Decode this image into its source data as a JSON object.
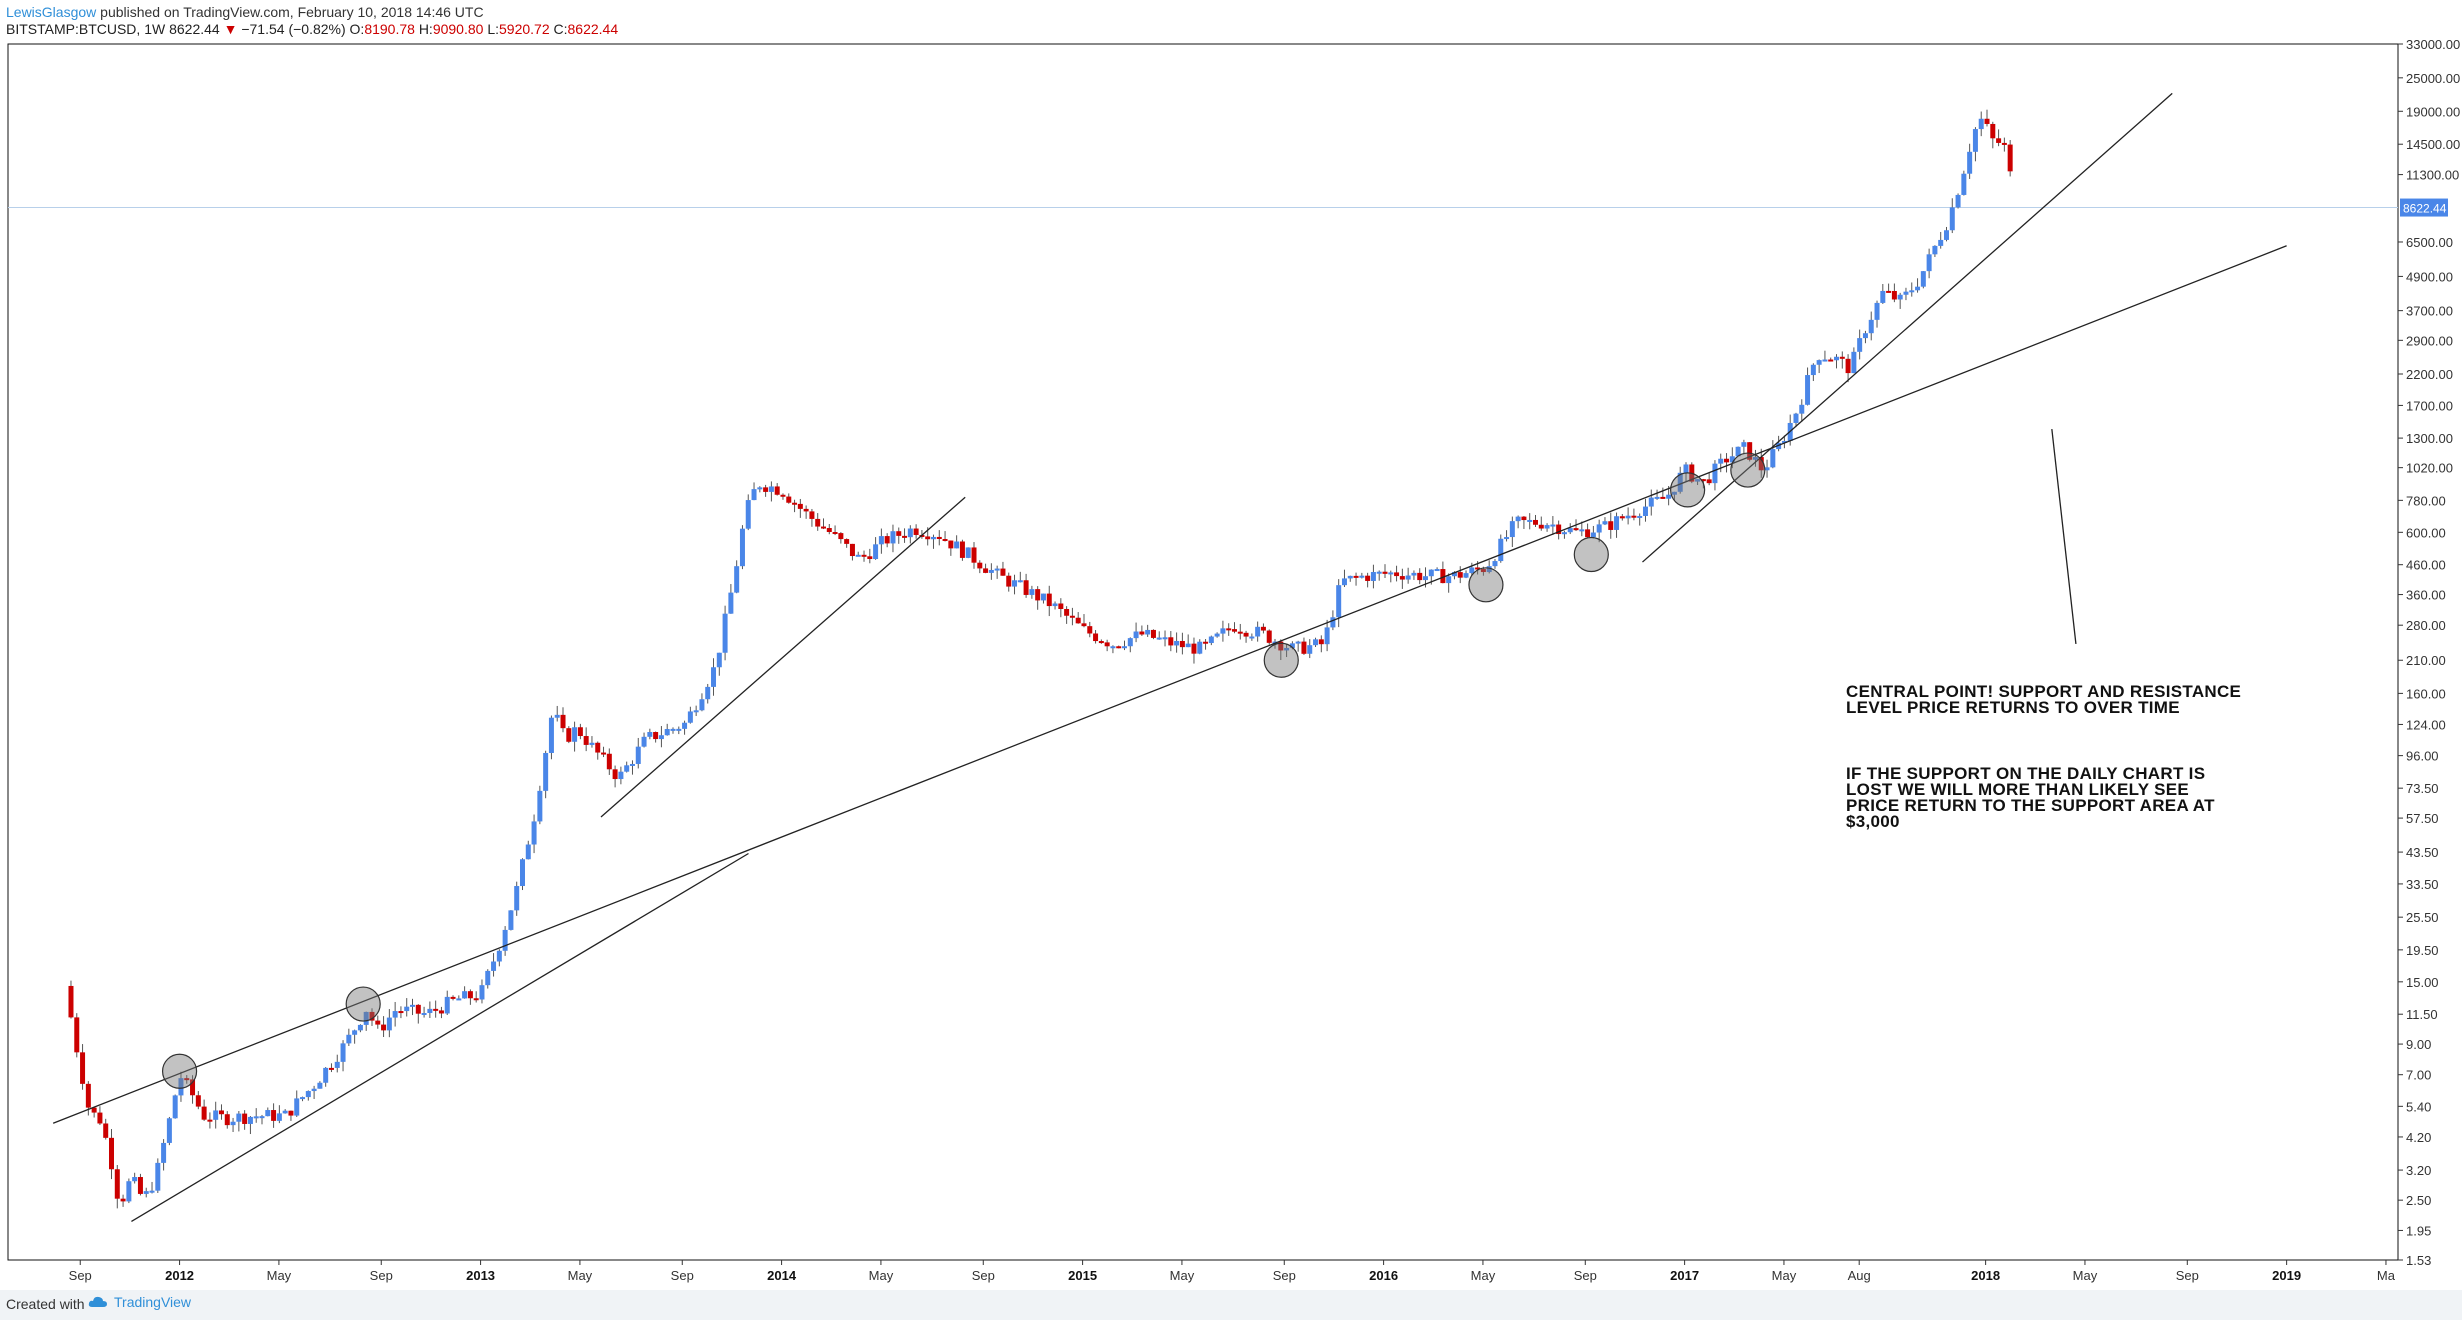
{
  "header": {
    "author": "LewisGlasgow",
    "published_text": "published on TradingView.com, February 10, 2018 14:46 UTC",
    "symbol": "BITSTAMP:BTCUSD, 1W",
    "last": "8622.44",
    "change_arrow": "▼",
    "change": "−71.54 (−0.82%)",
    "o_label": "O:",
    "o_val": "8190.78",
    "h_label": "H:",
    "h_val": "9090.80",
    "l_label": "L:",
    "l_val": "5920.72",
    "c_label": "C:",
    "c_val": "8622.44"
  },
  "footer": {
    "created_with": "Created with",
    "brand": "TradingView"
  },
  "annotations": {
    "central_point": "CENTRAL POINT! SUPPORT AND RESISTANCE LEVEL PRICE RETURNS TO OVER TIME",
    "support_note": "IF THE SUPPORT ON THE DAILY CHART IS LOST WE WILL MORE THAN LIKELY SEE PRICE RETURN TO THE SUPPORT AREA AT $3,000"
  },
  "colors": {
    "up": "#4a86e8",
    "down": "#cc0000",
    "price_tag": "#4a86e8",
    "trendline": "#222222"
  },
  "chart_data": {
    "type": "candlestick",
    "scale": "log",
    "ylim": [
      1.53,
      33000
    ],
    "y_ticks": [
      "1.53",
      "1.95",
      "2.50",
      "3.20",
      "4.20",
      "5.40",
      "7.00",
      "9.00",
      "11.50",
      "15.00",
      "19.50",
      "25.50",
      "33.50",
      "43.50",
      "57.50",
      "73.50",
      "96.00",
      "124.00",
      "160.00",
      "210.00",
      "280.00",
      "360.00",
      "460.00",
      "600.00",
      "780.00",
      "1020.00",
      "1300.00",
      "1700.00",
      "2200.00",
      "2900.00",
      "3700.00",
      "4900.00",
      "6500.00",
      "8622.44",
      "11300.00",
      "14500.00",
      "19000.00",
      "25000.00",
      "33000.00"
    ],
    "last_price": 8622.44,
    "x_ticks": [
      {
        "label": "Sep",
        "t": 2011.67,
        "bold": false
      },
      {
        "label": "2012",
        "t": 2012.0,
        "bold": true
      },
      {
        "label": "May",
        "t": 2012.33,
        "bold": false
      },
      {
        "label": "Sep",
        "t": 2012.67,
        "bold": false
      },
      {
        "label": "2013",
        "t": 2013.0,
        "bold": true
      },
      {
        "label": "May",
        "t": 2013.33,
        "bold": false
      },
      {
        "label": "Sep",
        "t": 2013.67,
        "bold": false
      },
      {
        "label": "2014",
        "t": 2014.0,
        "bold": true
      },
      {
        "label": "May",
        "t": 2014.33,
        "bold": false
      },
      {
        "label": "Sep",
        "t": 2014.67,
        "bold": false
      },
      {
        "label": "2015",
        "t": 2015.0,
        "bold": true
      },
      {
        "label": "May",
        "t": 2015.33,
        "bold": false
      },
      {
        "label": "Sep",
        "t": 2015.67,
        "bold": false
      },
      {
        "label": "2016",
        "t": 2016.0,
        "bold": true
      },
      {
        "label": "May",
        "t": 2016.33,
        "bold": false
      },
      {
        "label": "Sep",
        "t": 2016.67,
        "bold": false
      },
      {
        "label": "2017",
        "t": 2017.0,
        "bold": true
      },
      {
        "label": "May",
        "t": 2017.33,
        "bold": false
      },
      {
        "label": "Aug",
        "t": 2017.58,
        "bold": false
      },
      {
        "label": "2018",
        "t": 2018.0,
        "bold": true
      },
      {
        "label": "May",
        "t": 2018.33,
        "bold": false
      },
      {
        "label": "Sep",
        "t": 2018.67,
        "bold": false
      },
      {
        "label": "2019",
        "t": 2019.0,
        "bold": true
      },
      {
        "label": "Ma",
        "t": 2019.33,
        "bold": false
      }
    ],
    "price_path": [
      [
        2011.62,
        14.5
      ],
      [
        2011.66,
        8.5
      ],
      [
        2011.7,
        5.2
      ],
      [
        2011.74,
        4.8
      ],
      [
        2011.78,
        3.2
      ],
      [
        2011.8,
        2.4
      ],
      [
        2011.84,
        3.0
      ],
      [
        2011.88,
        2.5
      ],
      [
        2011.92,
        3.0
      ],
      [
        2011.97,
        5.0
      ],
      [
        2012.0,
        7.0
      ],
      [
        2012.04,
        6.0
      ],
      [
        2012.08,
        5.0
      ],
      [
        2012.15,
        4.9
      ],
      [
        2012.25,
        5.0
      ],
      [
        2012.35,
        5.0
      ],
      [
        2012.45,
        6.5
      ],
      [
        2012.55,
        9.0
      ],
      [
        2012.62,
        12.0
      ],
      [
        2012.66,
        10.0
      ],
      [
        2012.72,
        12.0
      ],
      [
        2012.82,
        11.5
      ],
      [
        2012.92,
        13.0
      ],
      [
        2013.0,
        13.5
      ],
      [
        2013.06,
        20.0
      ],
      [
        2013.12,
        32.0
      ],
      [
        2013.18,
        60.0
      ],
      [
        2013.24,
        140.0
      ],
      [
        2013.28,
        110.0
      ],
      [
        2013.32,
        120.0
      ],
      [
        2013.38,
        100.0
      ],
      [
        2013.46,
        80.0
      ],
      [
        2013.55,
        110.0
      ],
      [
        2013.68,
        125.0
      ],
      [
        2013.78,
        200.0
      ],
      [
        2013.84,
        400.0
      ],
      [
        2013.88,
        700.0
      ],
      [
        2013.92,
        900.0
      ],
      [
        2014.0,
        850.0
      ],
      [
        2014.08,
        700.0
      ],
      [
        2014.16,
        600.0
      ],
      [
        2014.26,
        480.0
      ],
      [
        2014.34,
        560.0
      ],
      [
        2014.44,
        620.0
      ],
      [
        2014.52,
        590.0
      ],
      [
        2014.62,
        500.0
      ],
      [
        2014.72,
        420.0
      ],
      [
        2014.8,
        380.0
      ],
      [
        2014.9,
        330.0
      ],
      [
        2015.0,
        270.0
      ],
      [
        2015.1,
        240.0
      ],
      [
        2015.2,
        260.0
      ],
      [
        2015.3,
        240.0
      ],
      [
        2015.4,
        230.0
      ],
      [
        2015.5,
        280.0
      ],
      [
        2015.6,
        260.0
      ],
      [
        2015.7,
        230.0
      ],
      [
        2015.8,
        240.0
      ],
      [
        2015.86,
        400.0
      ],
      [
        2015.94,
        420.0
      ],
      [
        2016.04,
        430.0
      ],
      [
        2016.14,
        420.0
      ],
      [
        2016.24,
        420.0
      ],
      [
        2016.34,
        450.0
      ],
      [
        2016.44,
        650.0
      ],
      [
        2016.54,
        650.0
      ],
      [
        2016.64,
        600.0
      ],
      [
        2016.74,
        630.0
      ],
      [
        2016.84,
        720.0
      ],
      [
        2016.94,
        800.0
      ],
      [
        2017.0,
        1000.0
      ],
      [
        2017.06,
        900.0
      ],
      [
        2017.14,
        1100.0
      ],
      [
        2017.2,
        1200.0
      ],
      [
        2017.26,
        1000.0
      ],
      [
        2017.32,
        1250.0
      ],
      [
        2017.38,
        1700.0
      ],
      [
        2017.44,
        2600.0
      ],
      [
        2017.5,
        2500.0
      ],
      [
        2017.55,
        2300.0
      ],
      [
        2017.6,
        3200.0
      ],
      [
        2017.66,
        4300.0
      ],
      [
        2017.72,
        4000.0
      ],
      [
        2017.78,
        4800.0
      ],
      [
        2017.84,
        6500.0
      ],
      [
        2017.88,
        8000.0
      ],
      [
        2017.92,
        11000.0
      ],
      [
        2017.96,
        16000.0
      ],
      [
        2017.99,
        18000.0
      ],
      [
        2018.02,
        15000.0
      ],
      [
        2018.06,
        14500.0
      ],
      [
        2018.08,
        11500.0
      ],
      [
        2018.1,
        8622.44
      ]
    ],
    "trendlines": [
      {
        "name": "major-support",
        "from": [
          2011.58,
          4.7
        ],
        "to": [
          2019.0,
          6300.0
        ]
      },
      {
        "name": "early-support",
        "from": [
          2011.84,
          2.1
        ],
        "to": [
          2013.89,
          43.0
        ]
      },
      {
        "name": "2013-support",
        "from": [
          2013.4,
          58.0
        ],
        "to": [
          2014.61,
          800.0
        ]
      },
      {
        "name": "2017-support",
        "from": [
          2016.86,
          470.0
        ],
        "to": [
          2018.62,
          22000.0
        ]
      },
      {
        "name": "pointer",
        "from": [
          2018.22,
          1400.0
        ],
        "to": [
          2018.3,
          240.0
        ]
      }
    ],
    "touch_points": [
      [
        2012.0,
        7.2
      ],
      [
        2012.61,
        12.5
      ],
      [
        2015.66,
        210.0
      ],
      [
        2016.34,
        390.0
      ],
      [
        2016.69,
        500.0
      ],
      [
        2017.01,
        850.0
      ],
      [
        2017.21,
        1000.0
      ]
    ]
  }
}
